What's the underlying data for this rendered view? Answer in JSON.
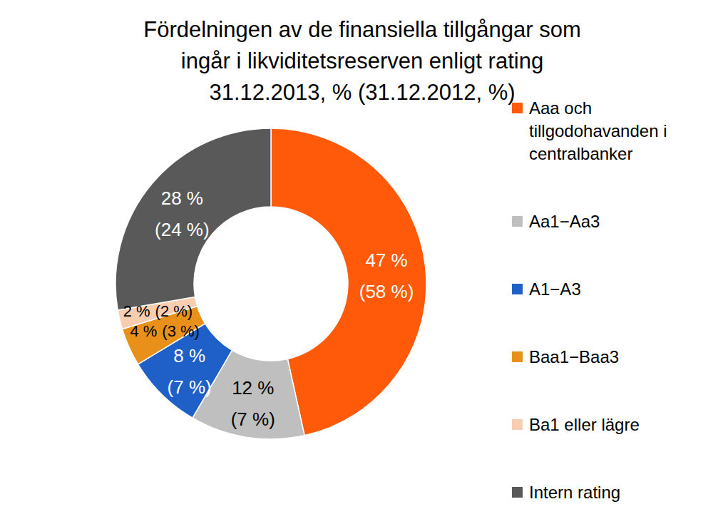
{
  "chart_data": {
    "type": "pie",
    "title": [
      "Fördelningen av de finansiella tillgångar som",
      "ingår i likviditetsreserven enligt rating",
      "31.12.2013, % (31.12.2012, %)"
    ],
    "categories": [
      "Aaa och tillgodohavanden i centralbanker",
      "Aa1−Aa3",
      "A1−A3",
      "Baa1−Baa3",
      "Ba1 eller lägre",
      "Intern rating"
    ],
    "colors": [
      "#ff5a0a",
      "#bfbfbf",
      "#1f5fc8",
      "#e8901a",
      "#f9cdb0",
      "#595959"
    ],
    "series": [
      {
        "values": [
          47,
          12,
          8,
          4,
          2,
          28
        ],
        "value_labels": [
          "47 %",
          "12 %",
          "8 %",
          "4 %",
          "2 %",
          "28 %"
        ]
      },
      {
        "values": [
          58,
          7,
          7,
          3,
          2,
          24
        ],
        "value_labels": [
          "(58 %)",
          "(7 %)",
          "(7 %)",
          "(3 %)",
          "(2 %)",
          "(24 %)"
        ]
      }
    ],
    "data_labels": true,
    "legend": "right"
  }
}
